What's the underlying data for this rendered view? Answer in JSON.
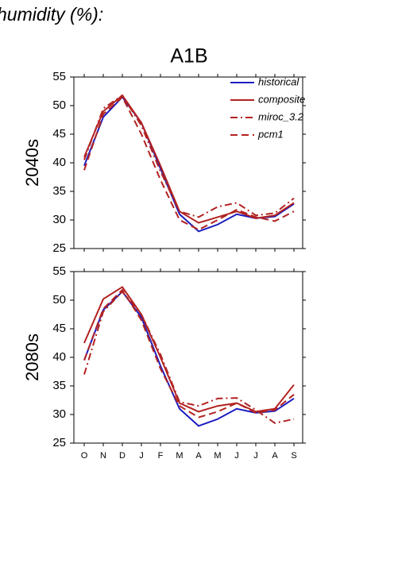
{
  "heading": "humidity (%):",
  "chart_data": [
    {
      "type": "line",
      "title": "A1B",
      "ylabel": "2040s",
      "ylim": [
        25,
        55
      ],
      "yticks": [
        25,
        30,
        35,
        40,
        45,
        50,
        55
      ],
      "series": [
        {
          "name": "historical",
          "color": "#1c1cbf",
          "style": "solid",
          "values": [
            39.5,
            48,
            51.5,
            47,
            39,
            31,
            28,
            29.2,
            31,
            30.3,
            30.6,
            32.8
          ]
        },
        {
          "name": "composite",
          "color": "#b22222",
          "style": "solid",
          "values": [
            41,
            49,
            51.8,
            47,
            39.5,
            31.5,
            29.5,
            30.5,
            31.5,
            30.3,
            30.8,
            33
          ]
        },
        {
          "name": "miroc_3.2",
          "color": "#b22222",
          "style": "dashdot",
          "values": [
            40.5,
            49.5,
            51.8,
            46.5,
            38.5,
            31.5,
            30.5,
            32.3,
            33,
            30.8,
            31.2,
            33.8
          ]
        },
        {
          "name": "pcm1",
          "color": "#b22222",
          "style": "dash",
          "values": [
            38.7,
            48.5,
            51.5,
            45,
            37,
            30,
            28.3,
            30,
            31.8,
            30.5,
            29.8,
            31.5
          ]
        }
      ]
    },
    {
      "type": "line",
      "ylabel": "2080s",
      "categories": [
        "O",
        "N",
        "D",
        "J",
        "F",
        "M",
        "A",
        "M",
        "J",
        "J",
        "A",
        "S"
      ],
      "ylim": [
        25,
        55
      ],
      "yticks": [
        25,
        30,
        35,
        40,
        45,
        50,
        55
      ],
      "series": [
        {
          "color": "#1c1cbf",
          "style": "solid",
          "values": [
            39.5,
            48.3,
            51.5,
            47,
            38.5,
            31,
            28,
            29.2,
            31,
            30.3,
            30.6,
            32.8
          ]
        },
        {
          "color": "#b22222",
          "style": "solid",
          "values": [
            42.5,
            50.2,
            52.3,
            47.5,
            40,
            32,
            30.5,
            31.5,
            32,
            30.5,
            31,
            35.2
          ]
        },
        {
          "color": "#b22222",
          "style": "dashdot",
          "values": [
            37,
            48,
            51.5,
            47.5,
            40.5,
            32.2,
            31.5,
            32.8,
            32.9,
            30.8,
            28.5,
            29.2
          ]
        },
        {
          "color": "#b22222",
          "style": "dash",
          "values": [
            39.5,
            48.5,
            51.8,
            46.5,
            38,
            31.5,
            29.5,
            30.5,
            32,
            30.3,
            30.8,
            33.5
          ]
        }
      ]
    }
  ]
}
